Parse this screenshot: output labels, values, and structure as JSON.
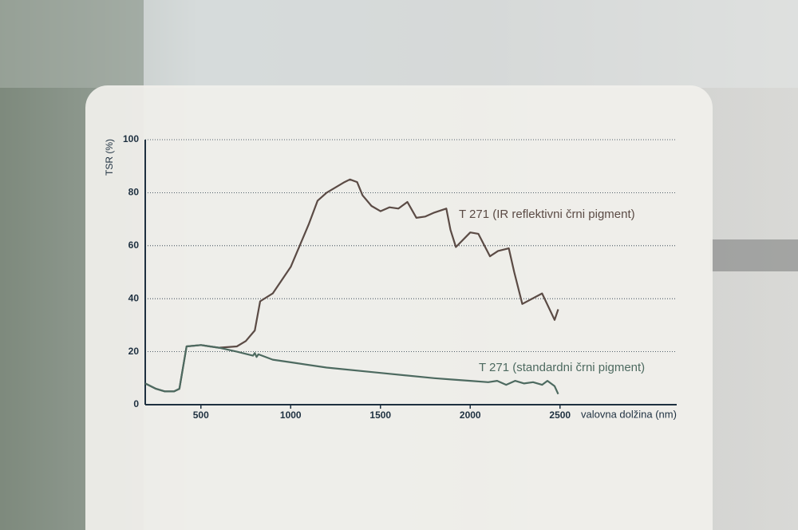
{
  "chart_data": {
    "type": "line",
    "y_label": "TSR (%)",
    "x_label": "valovna dolžina (nm)",
    "xlim": [
      190,
      3150
    ],
    "ylim": [
      0,
      100
    ],
    "xticks": [
      500,
      1000,
      1500,
      2000,
      2500
    ],
    "yticks": [
      0,
      20,
      40,
      60,
      80,
      100
    ],
    "grid": true,
    "series": [
      {
        "name": "T 271 (IR reflektivni črni pigment)",
        "color": "#5b4b45",
        "x": [
          190,
          250,
          300,
          350,
          380,
          420,
          500,
          550,
          600,
          700,
          750,
          800,
          830,
          900,
          1000,
          1100,
          1150,
          1200,
          1300,
          1330,
          1370,
          1400,
          1450,
          1500,
          1550,
          1600,
          1650,
          1700,
          1750,
          1800,
          1867,
          1890,
          1920,
          2000,
          2045,
          2110,
          2155,
          2215,
          2245,
          2290,
          2400,
          2470,
          2490
        ],
        "values": [
          8,
          6,
          5,
          5,
          6,
          22,
          22.5,
          22,
          21.5,
          22,
          24,
          28,
          39,
          42,
          52,
          68,
          77,
          80,
          84,
          85,
          84,
          79,
          75,
          73,
          74.5,
          74,
          76.5,
          70.5,
          71,
          72.5,
          74,
          66,
          59.5,
          65,
          64.5,
          56,
          58,
          59,
          50,
          38,
          42,
          32,
          36
        ]
      },
      {
        "name": "T 271 (standardni črni pigment)",
        "color": "#4d6a60",
        "x": [
          190,
          250,
          300,
          350,
          380,
          420,
          500,
          550,
          600,
          700,
          790,
          800,
          810,
          820,
          900,
          1000,
          1200,
          1500,
          1800,
          1900,
          2000,
          2100,
          2150,
          2200,
          2250,
          2300,
          2350,
          2400,
          2430,
          2470,
          2490
        ],
        "values": [
          8,
          6,
          5,
          5,
          6,
          22,
          22.5,
          22,
          21.5,
          20,
          18.5,
          19.5,
          18,
          19,
          17,
          16,
          14,
          12,
          10,
          9.5,
          9,
          8.5,
          9,
          7.5,
          9,
          8,
          8.5,
          7.5,
          9,
          7,
          4
        ]
      }
    ]
  }
}
